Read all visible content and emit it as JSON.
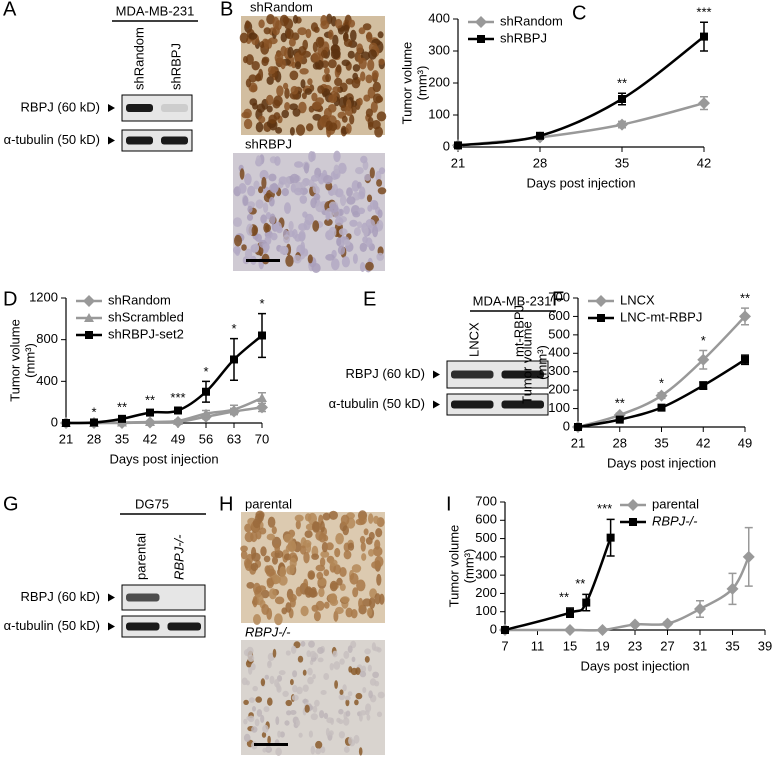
{
  "panel_labels": [
    "A",
    "B",
    "C",
    "D",
    "E",
    "F",
    "G",
    "H",
    "I"
  ],
  "blots": [
    {
      "header": "MDA-MB-231",
      "lanes": [
        "shRandom",
        "shRBPJ"
      ],
      "rows": [
        "RBPJ (60 kD)",
        "α-tubulin (50 kD)"
      ]
    },
    {
      "header": "MDA-MB-231",
      "lanes": [
        "LNCX",
        "mt-RBPJ"
      ],
      "rows": [
        "RBPJ (60 kD)",
        "α-tubulin (50 kD)"
      ]
    },
    {
      "header": "DG75",
      "lanes": [
        "parental",
        "RBPJ-/-"
      ],
      "rows": [
        "RBPJ (60 kD)",
        "α-tubulin (50 kD)"
      ]
    }
  ],
  "images": [
    {
      "labels": [
        "shRandom",
        "shRBPJ"
      ]
    },
    {
      "labels": [
        "parental",
        "RBPJ-/-"
      ]
    }
  ],
  "chart_data": [
    {
      "type": "line",
      "x": [
        21,
        28,
        35,
        42
      ],
      "xlim": [
        21,
        42
      ],
      "xticks": [
        21,
        28,
        35,
        42
      ],
      "ylim": [
        0,
        400
      ],
      "yticks": [
        0,
        100,
        200,
        300,
        400
      ],
      "xlabel": "Days post injection",
      "ylabel": [
        "Tumor volume",
        "(mm³)"
      ],
      "legend": "upper left",
      "annotations": [
        null,
        null,
        "**",
        "***"
      ],
      "series": [
        {
          "name": "shRandom",
          "color": "#999999",
          "marker": "diamond",
          "values": [
            5,
            30,
            70,
            137
          ],
          "errors": [
            3,
            5,
            10,
            20
          ]
        },
        {
          "name": "shRBPJ",
          "color": "#000000",
          "marker": "square",
          "values": [
            5,
            35,
            150,
            345
          ],
          "errors": [
            2,
            8,
            18,
            45
          ]
        }
      ]
    },
    {
      "type": "line",
      "x": [
        21,
        28,
        35,
        42,
        49,
        56,
        63,
        70
      ],
      "xlim": [
        21,
        70
      ],
      "xticks": [
        21,
        28,
        35,
        42,
        49,
        56,
        63,
        70
      ],
      "ylim": [
        0,
        1200
      ],
      "yticks": [
        0,
        400,
        800,
        1200
      ],
      "xlabel": "Days post injection",
      "ylabel": [
        "Tumor volume",
        "(mm³)"
      ],
      "legend": "upper left",
      "annotations": [
        null,
        "*",
        "**",
        "**",
        "***",
        "*",
        "*",
        "*"
      ],
      "series": [
        {
          "name": "shRandom",
          "color": "#999999",
          "marker": "diamond",
          "values": [
            0,
            0,
            0,
            5,
            10,
            60,
            110,
            150
          ],
          "errors": [
            0,
            0,
            0,
            5,
            5,
            20,
            30,
            40
          ]
        },
        {
          "name": "shScrambled",
          "color": "#999999",
          "marker": "triangle",
          "values": [
            0,
            0,
            5,
            10,
            20,
            90,
            130,
            240
          ],
          "errors": [
            0,
            0,
            5,
            5,
            10,
            30,
            40,
            50
          ]
        },
        {
          "name": "shRBPJ-set2",
          "color": "#000000",
          "marker": "square",
          "values": [
            0,
            5,
            40,
            100,
            120,
            300,
            610,
            840
          ],
          "errors": [
            0,
            5,
            15,
            25,
            30,
            100,
            200,
            210
          ]
        }
      ]
    },
    {
      "type": "line",
      "x": [
        21,
        28,
        35,
        42,
        49
      ],
      "xlim": [
        21,
        49
      ],
      "xticks": [
        21,
        28,
        35,
        42,
        49
      ],
      "ylim": [
        0,
        700
      ],
      "yticks": [
        0,
        100,
        200,
        300,
        400,
        500,
        600,
        700
      ],
      "xlabel": "Days post injection",
      "ylabel": [
        "Tumor volume",
        "(mm³)"
      ],
      "legend": "upper left",
      "annotations": [
        null,
        "**",
        "*",
        "*",
        "**"
      ],
      "series": [
        {
          "name": "LNCX",
          "color": "#999999",
          "marker": "diamond",
          "values": [
            0,
            65,
            170,
            365,
            600
          ],
          "errors": [
            0,
            10,
            15,
            50,
            45
          ]
        },
        {
          "name": "LNC-mt-RBPJ",
          "color": "#000000",
          "marker": "square",
          "values": [
            0,
            40,
            105,
            225,
            365
          ],
          "errors": [
            0,
            5,
            10,
            20,
            25
          ]
        }
      ]
    },
    {
      "type": "line",
      "xlim": [
        7,
        39
      ],
      "xticks": [
        7,
        11,
        15,
        19,
        23,
        27,
        31,
        35,
        39
      ],
      "ylim": [
        0,
        700
      ],
      "yticks": [
        0,
        100,
        200,
        300,
        400,
        500,
        600,
        700
      ],
      "xlabel": "Days post injection",
      "ylabel": [
        "Tumor volume",
        "(mm³)"
      ],
      "legend": "upper center",
      "series": [
        {
          "name": "parental",
          "color": "#999999",
          "marker": "diamond",
          "x": [
            7,
            15,
            19,
            23,
            27,
            31,
            35,
            37
          ],
          "values": [
            0,
            0,
            0,
            30,
            35,
            115,
            225,
            400
          ],
          "errors": [
            0,
            0,
            0,
            5,
            10,
            45,
            85,
            160
          ]
        },
        {
          "name": "RBPJ-/-",
          "color": "#000000",
          "marker": "square",
          "x": [
            7,
            15,
            17,
            20
          ],
          "values": [
            0,
            95,
            150,
            505
          ],
          "errors": [
            0,
            25,
            45,
            100
          ],
          "annotations": [
            null,
            "**",
            "**",
            "***"
          ]
        }
      ]
    }
  ]
}
